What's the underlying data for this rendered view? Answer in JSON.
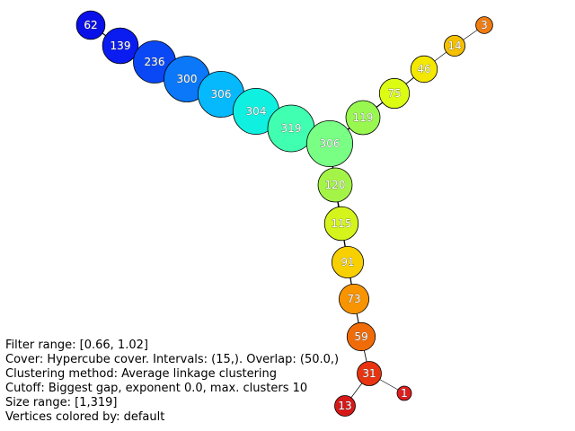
{
  "graph": {
    "nodes": [
      {
        "id": "n1",
        "label": "62",
        "size": 62,
        "color": "#0a10e8"
      },
      {
        "id": "n2",
        "label": "139",
        "size": 139,
        "color": "#0a1cf0"
      },
      {
        "id": "n3",
        "label": "236",
        "size": 236,
        "color": "#0a48f5"
      },
      {
        "id": "n4",
        "label": "300",
        "size": 300,
        "color": "#0a78f8"
      },
      {
        "id": "n5",
        "label": "306",
        "size": 306,
        "color": "#06b8fc"
      },
      {
        "id": "n6",
        "label": "304",
        "size": 304,
        "color": "#10f0e0"
      },
      {
        "id": "n7",
        "label": "319",
        "size": 319,
        "color": "#40ffb0"
      },
      {
        "id": "n8",
        "label": "306",
        "size": 306,
        "color": "#78ff84"
      },
      {
        "id": "n9",
        "label": "119",
        "size": 119,
        "color": "#98f850"
      },
      {
        "id": "n10",
        "label": "75",
        "size": 75,
        "color": "#dcfc14"
      },
      {
        "id": "n11",
        "label": "46",
        "size": 46,
        "color": "#f4e800"
      },
      {
        "id": "n12",
        "label": "14",
        "size": 14,
        "color": "#f4c000"
      },
      {
        "id": "n13",
        "label": "3",
        "size": 3,
        "color": "#f07c10"
      },
      {
        "id": "n14",
        "label": "120",
        "size": 120,
        "color": "#a4f448"
      },
      {
        "id": "n15",
        "label": "115",
        "size": 115,
        "color": "#d4f41c"
      },
      {
        "id": "n16",
        "label": "91",
        "size": 91,
        "color": "#f8d000"
      },
      {
        "id": "n17",
        "label": "73",
        "size": 73,
        "color": "#f89400"
      },
      {
        "id": "n18",
        "label": "59",
        "size": 59,
        "color": "#f06c08"
      },
      {
        "id": "n19",
        "label": "31",
        "size": 31,
        "color": "#e83410"
      },
      {
        "id": "n20",
        "label": "13",
        "size": 13,
        "color": "#d81818"
      },
      {
        "id": "n21",
        "label": "1",
        "size": 1,
        "color": "#e01e1e"
      }
    ],
    "edges": [
      [
        "n1",
        "n2"
      ],
      [
        "n2",
        "n3"
      ],
      [
        "n3",
        "n4"
      ],
      [
        "n4",
        "n5"
      ],
      [
        "n5",
        "n6"
      ],
      [
        "n6",
        "n7"
      ],
      [
        "n7",
        "n8"
      ],
      [
        "n8",
        "n9"
      ],
      [
        "n9",
        "n10"
      ],
      [
        "n10",
        "n11"
      ],
      [
        "n11",
        "n12"
      ],
      [
        "n12",
        "n13"
      ],
      [
        "n8",
        "n14"
      ],
      [
        "n14",
        "n15"
      ],
      [
        "n15",
        "n16"
      ],
      [
        "n16",
        "n17"
      ],
      [
        "n17",
        "n18"
      ],
      [
        "n18",
        "n19"
      ],
      [
        "n19",
        "n20"
      ],
      [
        "n19",
        "n21"
      ]
    ]
  },
  "info": {
    "filter_range": "Filter range: [0.66, 1.02]",
    "cover": "Cover: Hypercube cover. Intervals: (15,). Overlap: (50.0,)",
    "clustering": "Clustering method: Average linkage clustering",
    "cutoff": "Cutoff: Biggest gap, exponent 0.0, max. clusters 10",
    "size_range": "Size range: [1,319]",
    "vertex_color": "Vertices colored by: default"
  }
}
